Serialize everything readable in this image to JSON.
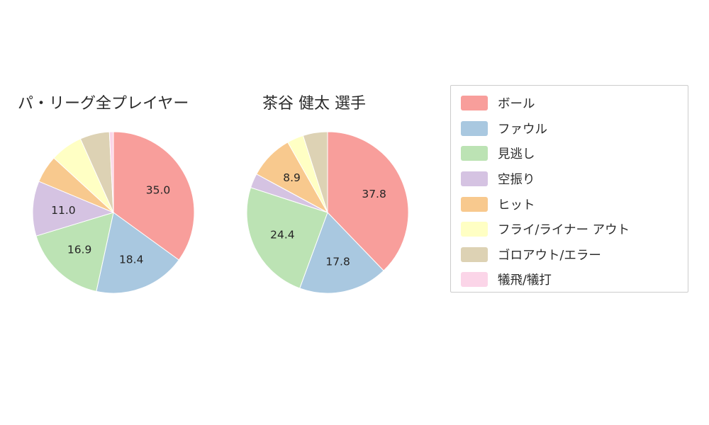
{
  "chart_data": [
    {
      "type": "pie",
      "title": "パ・リーグ全プレイヤー",
      "categories": [
        "ボール",
        "ファウル",
        "見逃し",
        "空振り",
        "ヒット",
        "フライ/ライナー アウト",
        "ゴロアウト/エラー",
        "犠飛/犠打"
      ],
      "values": [
        35.0,
        18.4,
        16.9,
        11.0,
        5.5,
        6.5,
        5.9,
        0.8
      ],
      "labels": [
        "35.0",
        "18.4",
        "16.9",
        "11.0",
        "",
        "",
        "",
        ""
      ],
      "start_angle": 90,
      "direction": "clockwise",
      "label_distance": 0.62
    },
    {
      "type": "pie",
      "title": "茶谷 健太  選手",
      "categories": [
        "ボール",
        "ファウル",
        "見逃し",
        "空振り",
        "ヒット",
        "フライ/ライナー アウト",
        "ゴロアウト/エラー",
        "犠飛/犠打"
      ],
      "values": [
        37.8,
        17.8,
        24.4,
        2.9,
        8.9,
        3.3,
        4.9,
        0.0
      ],
      "labels": [
        "37.8",
        "17.8",
        "24.4",
        "",
        "8.9",
        "",
        "",
        ""
      ],
      "start_angle": 90,
      "direction": "clockwise",
      "label_distance": 0.62
    }
  ],
  "legend": {
    "position": "right",
    "items": [
      {
        "label": "ボール",
        "color": "#F89E9B"
      },
      {
        "label": "ファウル",
        "color": "#A9C8E0"
      },
      {
        "label": "見逃し",
        "color": "#BCE3B4"
      },
      {
        "label": "空振り",
        "color": "#D5C3E2"
      },
      {
        "label": "ヒット",
        "color": "#F8C98E"
      },
      {
        "label": "フライ/ライナー アウト",
        "color": "#FFFFC4"
      },
      {
        "label": "ゴロアウト/エラー",
        "color": "#DDD2B4"
      },
      {
        "label": "犠飛/犠打",
        "color": "#FBD5E8"
      }
    ]
  },
  "style": {
    "slice_border_color": "#ffffff",
    "pie_label_color": "#262626",
    "title_color": "#2b2b2b"
  }
}
